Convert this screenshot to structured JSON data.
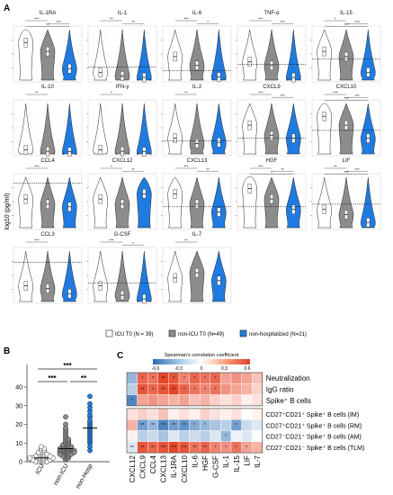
{
  "panels": {
    "a": "A",
    "b": "B",
    "c": "C"
  },
  "colors": {
    "icu": "#ffffff",
    "nonicu": "#8c8c8c",
    "nonhosp": "#1f7be0",
    "outline": "#222222"
  },
  "panel_a": {
    "ylabel": "log10 (pg/ml)",
    "legend": [
      {
        "label": "ICU T0 (N = 39)",
        "color": "#ffffff"
      },
      {
        "label": "non-ICU T0 (N=49)",
        "color": "#8c8c8c"
      },
      {
        "label": "non-hospitalized (N=21)",
        "color": "#1f7be0"
      }
    ]
  },
  "panel_b": {
    "xticks": [
      "ICU",
      "non-ICU",
      "non-Hosp"
    ],
    "yticks": [
      "0",
      "10",
      "20",
      "30",
      "40"
    ],
    "sig": [
      "***",
      "***",
      "**"
    ]
  },
  "panel_c": {
    "colorbar_title": "Spearman's correlation coefficient",
    "colorbar_ticks": [
      "-0.6",
      "-0.3",
      "0",
      "0.3",
      "0.6"
    ]
  },
  "chart_data": [
    {
      "type": "violin",
      "title": "",
      "ylabel": "log10 (pg/ml)",
      "groups": [
        "ICU T0 (N = 39)",
        "non-ICU T0 (N=49)",
        "non-hospitalized (N=21)"
      ],
      "panels": [
        {
          "name": "IL-1RA",
          "sig": [
            "***",
            "***",
            "**"
          ],
          "medians": [
            0.72,
            0.55,
            0.22
          ],
          "dash": null
        },
        {
          "name": "IL-1",
          "sig": [
            "**",
            "**"
          ],
          "medians": [
            0.15,
            0.08,
            0.05
          ],
          "dash": 0.25
        },
        {
          "name": "IL-6",
          "sig": [
            "***",
            "*"
          ],
          "medians": [
            0.45,
            0.28,
            0.06
          ],
          "dash": 0.18
        },
        {
          "name": "TNF-α",
          "sig": [
            "***",
            "***"
          ],
          "medians": [
            0.35,
            0.28,
            0.05
          ],
          "dash": 0.3
        },
        {
          "name": "IL-15",
          "sig": [
            "*",
            "***",
            "***"
          ],
          "medians": [
            0.55,
            0.45,
            0.15
          ],
          "dash": 0.4
        },
        {
          "name": "IL-10",
          "sig": [
            "**"
          ],
          "medians": [
            0.08,
            0.05,
            0.04
          ],
          "dash": null
        },
        {
          "name": "IFN-γ",
          "sig": [
            "*"
          ],
          "medians": [
            0.08,
            0.05,
            0.04
          ],
          "dash": null
        },
        {
          "name": "IL-2",
          "sig": [
            "**"
          ],
          "medians": [
            0.3,
            0.2,
            0.22
          ],
          "dash": 0.25
        },
        {
          "name": "CXCL9",
          "sig": [
            "***",
            "***"
          ],
          "medians": [
            0.55,
            0.35,
            0.3
          ],
          "dash": 0.3
        },
        {
          "name": "CXCL10",
          "sig": [
            "***",
            "***",
            "***"
          ],
          "medians": [
            0.72,
            0.55,
            0.3
          ],
          "dash": 0.45
        },
        {
          "name": "CCL4",
          "sig": [
            "***"
          ],
          "medians": [
            0.55,
            0.45,
            0.4
          ],
          "dash": 0.85
        },
        {
          "name": "CXCL12",
          "sig": [
            "*",
            "**"
          ],
          "medians": [
            0.55,
            0.45,
            0.65
          ],
          "dash": null
        },
        {
          "name": "CXCL13",
          "sig": [
            "***",
            "**"
          ],
          "medians": [
            0.65,
            0.45,
            0.3
          ],
          "dash": 0.4
        },
        {
          "name": "HGF",
          "sig": [
            "***",
            "**",
            "*"
          ],
          "medians": [
            0.75,
            0.55,
            0.35
          ],
          "dash": 0.4
        },
        {
          "name": "LIF",
          "sig": [
            "**",
            "***",
            "***"
          ],
          "medians": [
            0.35,
            0.25,
            0.1
          ],
          "dash": 0.45
        },
        {
          "name": "CCL3",
          "sig": [
            "***"
          ],
          "medians": [
            0.3,
            0.25,
            0.15
          ],
          "dash": 0.75
        },
        {
          "name": "G-CSF",
          "sig": [
            "***",
            "*"
          ],
          "medians": [
            0.3,
            0.12,
            0.05
          ],
          "dash": 0.35
        },
        {
          "name": "IL-7",
          "sig": [
            "**"
          ],
          "medians": [
            0.45,
            0.55,
            0.4
          ],
          "dash": null
        }
      ]
    },
    {
      "type": "scatter",
      "title": "",
      "ylabel": "",
      "categories": [
        "ICU",
        "non-ICU",
        "non-Hosp"
      ],
      "ylim": [
        0,
        40
      ],
      "series": [
        {
          "category": "ICU",
          "values": [
            0,
            0,
            0,
            1,
            1,
            1,
            1,
            2,
            2,
            2,
            2,
            2,
            3,
            3,
            3,
            3,
            4,
            4,
            4,
            5,
            5,
            5,
            6,
            6,
            7,
            7,
            8,
            2,
            1,
            0,
            3,
            2,
            4,
            1,
            2,
            3,
            0,
            1,
            2
          ]
        },
        {
          "category": "non-ICU",
          "values": [
            1,
            2,
            2,
            3,
            3,
            4,
            4,
            4,
            5,
            5,
            5,
            5,
            6,
            6,
            6,
            6,
            7,
            7,
            7,
            7,
            8,
            8,
            8,
            9,
            9,
            9,
            10,
            10,
            11,
            11,
            12,
            12,
            13,
            14,
            15,
            16,
            17,
            18,
            20,
            24,
            3,
            4,
            5,
            6,
            7,
            8,
            6,
            5,
            4
          ]
        },
        {
          "category": "non-Hosp",
          "values": [
            6,
            8,
            10,
            11,
            12,
            13,
            14,
            15,
            16,
            17,
            18,
            19,
            20,
            21,
            22,
            24,
            25,
            27,
            29,
            31,
            35
          ]
        }
      ]
    },
    {
      "type": "heatmap",
      "title": "",
      "rows": [
        "Neutralization",
        "IgG ratio",
        "Spike⁺ B cells",
        "CD27⁺CD21⁺ Spike⁺ B cells (IM)",
        "CD27⁺CD21⁺ Spike⁺ B cells (RM)",
        "CD27⁻CD21⁺ Spike⁺ B cells (AM)",
        "CD27⁻CD21⁻ Spike⁺ B cells (TLM)"
      ],
      "cols": [
        "CXCL12",
        "CXCL9",
        "CCL4",
        "CXCL13",
        "IL-1RA",
        "CXCL10",
        "IL-6",
        "HGF",
        "G-CSF",
        "IL-1",
        "IL-15",
        "LIF",
        "IL-7"
      ],
      "values": [
        [
          -0.3,
          0.5,
          0.45,
          0.6,
          0.55,
          0.4,
          0.5,
          0.45,
          0.5,
          0.3,
          0.35,
          0.3,
          0.2
        ],
        [
          -0.2,
          0.55,
          0.5,
          0.55,
          0.6,
          0.5,
          0.45,
          0.4,
          0.45,
          0.35,
          0.3,
          0.25,
          0.15
        ],
        [
          -0.5,
          0.3,
          0.35,
          0.3,
          0.25,
          0.3,
          0.2,
          0.25,
          0.15,
          0.1,
          0.15,
          0.05,
          0.1
        ],
        [
          0.1,
          0.15,
          0.1,
          0.2,
          0.05,
          0.1,
          0.05,
          0.15,
          0.1,
          0.05,
          0.1,
          0.0,
          0.05
        ],
        [
          0.25,
          -0.4,
          -0.3,
          -0.5,
          -0.4,
          -0.45,
          -0.35,
          -0.3,
          -0.25,
          -0.2,
          -0.4,
          -0.15,
          -0.1
        ],
        [
          0.05,
          -0.2,
          -0.15,
          -0.25,
          -0.1,
          -0.2,
          -0.15,
          -0.2,
          -0.1,
          -0.3,
          -0.05,
          -0.1,
          0.0
        ],
        [
          -0.1,
          0.55,
          0.5,
          0.55,
          0.6,
          0.55,
          0.45,
          0.5,
          0.4,
          0.35,
          0.45,
          0.3,
          0.25
        ]
      ],
      "stars": [
        [
          "",
          "*",
          "*",
          "**",
          "*",
          "*",
          "*",
          "*",
          "*",
          "",
          "",
          "",
          ""
        ],
        [
          "",
          "**",
          "*",
          "**",
          "**",
          "*",
          "*",
          "*",
          "*",
          "",
          "",
          "",
          ""
        ],
        [
          "*",
          "",
          "",
          "",
          "",
          "",
          "",
          "",
          "",
          "",
          "",
          "",
          ""
        ],
        [
          "",
          "",
          "",
          "",
          "",
          "",
          "",
          "",
          "",
          "",
          "",
          "",
          ""
        ],
        [
          "",
          "**",
          "**",
          "***",
          "**",
          "**",
          "*",
          "*",
          "",
          "",
          "*",
          "",
          ""
        ],
        [
          "",
          "",
          "",
          "",
          "",
          "",
          "",
          "",
          "",
          "*",
          "",
          "",
          ""
        ],
        [
          "**",
          "**",
          "**",
          "***",
          "***",
          "***",
          "**",
          "**",
          "*",
          "*",
          "*",
          "*",
          ""
        ]
      ],
      "colorbar_range": [
        -0.6,
        0.6
      ]
    }
  ]
}
